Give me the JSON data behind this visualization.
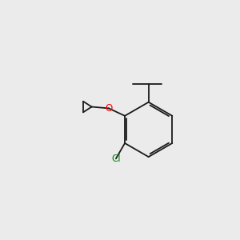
{
  "background_color": "#ebebeb",
  "bond_color": "#1a1a1a",
  "bond_width": 1.3,
  "atom_colors": {
    "O": "#ff0000",
    "Cl": "#008800",
    "C": "#1a1a1a"
  },
  "font_size_atom": 8.5,
  "figsize": [
    3.0,
    3.0
  ],
  "dpi": 100
}
